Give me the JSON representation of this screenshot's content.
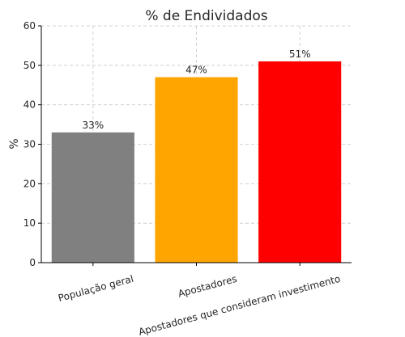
{
  "chart_data": {
    "type": "bar",
    "title": "% de Endividados",
    "xlabel": "",
    "ylabel": "%",
    "ylim": [
      0,
      60
    ],
    "yticks": [
      0,
      10,
      20,
      30,
      40,
      50,
      60
    ],
    "grid": true,
    "categories": [
      "População geral",
      "Apostadores",
      "Apostadores que consideram investimento"
    ],
    "values": [
      33,
      47,
      51
    ],
    "data_labels": [
      "33%",
      "47%",
      "51%"
    ],
    "colors": [
      "#808080",
      "#FFA500",
      "#FF0000"
    ]
  }
}
